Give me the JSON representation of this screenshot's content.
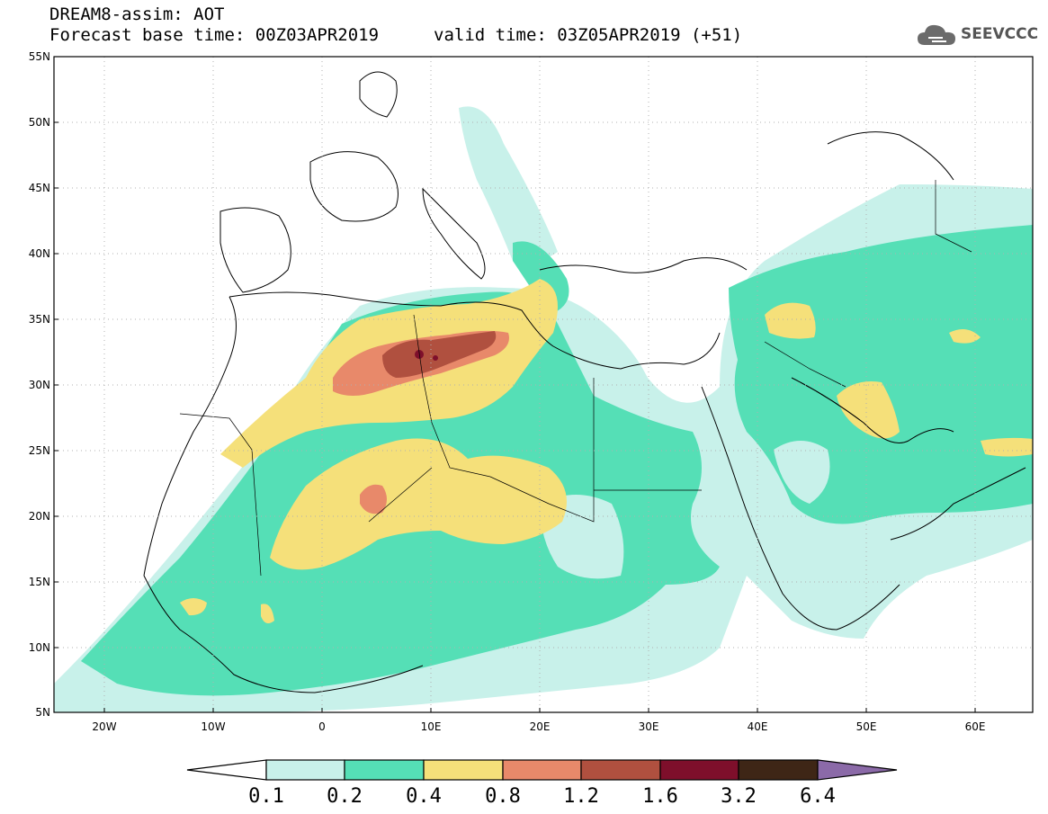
{
  "header": {
    "title_line1": "DREAM8-assim: AOT",
    "title_line2": "Forecast base time: 00Z03APR2019",
    "valid_time": "valid time: 03Z05APR2019 (+51)"
  },
  "logo": {
    "icon": "cloud-icon",
    "text": "SEEVCCC"
  },
  "map": {
    "lat_labels": [
      "55N",
      "50N",
      "45N",
      "40N",
      "35N",
      "30N",
      "25N",
      "20N",
      "15N",
      "10N",
      "5N"
    ],
    "lon_labels": [
      "20W",
      "10W",
      "0",
      "10E",
      "20E",
      "30E",
      "40E",
      "50E",
      "60E"
    ]
  },
  "colorbar": {
    "labels": [
      "0.1",
      "0.2",
      "0.4",
      "0.8",
      "1.2",
      "1.6",
      "3.2",
      "6.4"
    ],
    "colors": [
      "#ffffff",
      "#c8f1ea",
      "#55dfb6",
      "#f5e07a",
      "#e8896a",
      "#b0503f",
      "#7e0f2b",
      "#3e2616",
      "#8b6aa8"
    ]
  },
  "colors": {
    "aot_0_1": "#c8f1ea",
    "aot_0_2": "#55dfb6",
    "aot_0_4": "#f5e07a",
    "aot_0_8": "#e8896a",
    "aot_1_2": "#b0503f",
    "aot_1_6": "#7e0f2b"
  }
}
